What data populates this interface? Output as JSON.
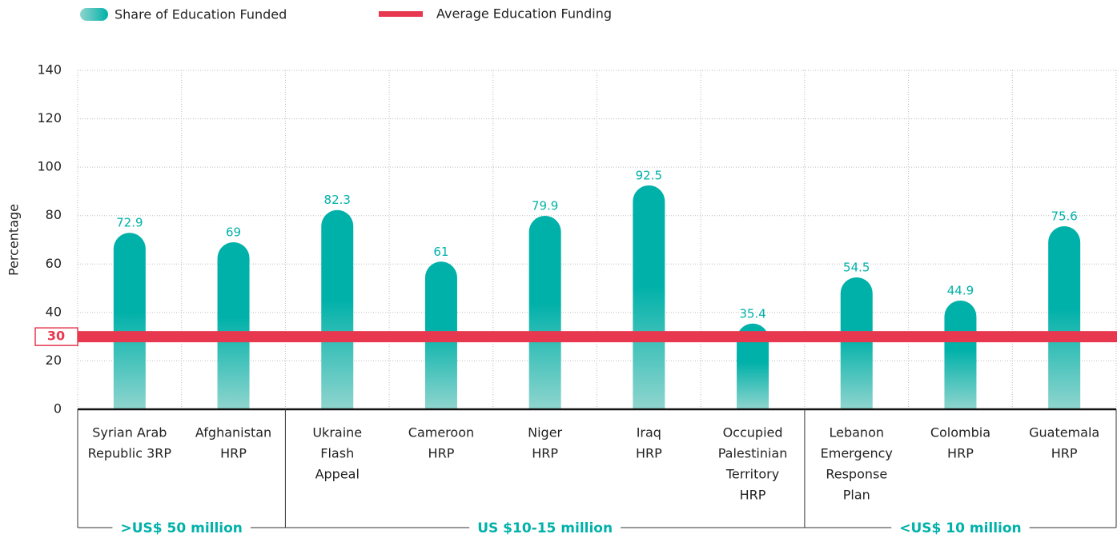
{
  "chart_data": {
    "type": "bar",
    "y_label": "Percentage",
    "ylim": [
      0,
      140
    ],
    "yticks": [
      0,
      20,
      40,
      60,
      80,
      100,
      120,
      140
    ],
    "grid": true,
    "groups": [
      {
        "label": ">US$ 50 million",
        "categories": [
          [
            "Syrian Arab",
            "Republic 3RP"
          ],
          [
            "Afghanistan",
            "HRP"
          ]
        ]
      },
      {
        "label": "US $10-15 million",
        "categories": [
          [
            "Ukraine",
            "Flash",
            "Appeal"
          ],
          [
            "Cameroon",
            "HRP"
          ],
          [
            "Niger",
            "HRP"
          ],
          [
            "Iraq",
            "HRP"
          ],
          [
            "Occupied",
            "Palestinian",
            "Territory",
            "HRP"
          ]
        ]
      },
      {
        "label": "<US$ 10 million",
        "categories": [
          [
            "Lebanon",
            "Emergency",
            "Response",
            "Plan"
          ],
          [
            "Colombia",
            "HRP"
          ],
          [
            "Guatemala",
            "HRP"
          ]
        ]
      }
    ],
    "series": [
      {
        "name": "Share of Education Funded",
        "color": "#00b1a9",
        "values": [
          72.9,
          69,
          82.3,
          61,
          79.9,
          92.5,
          35.4,
          54.5,
          44.9,
          75.6
        ]
      }
    ],
    "reference_line": {
      "name": "Average Education Funding",
      "value": 30,
      "color": "#e8384f"
    }
  }
}
